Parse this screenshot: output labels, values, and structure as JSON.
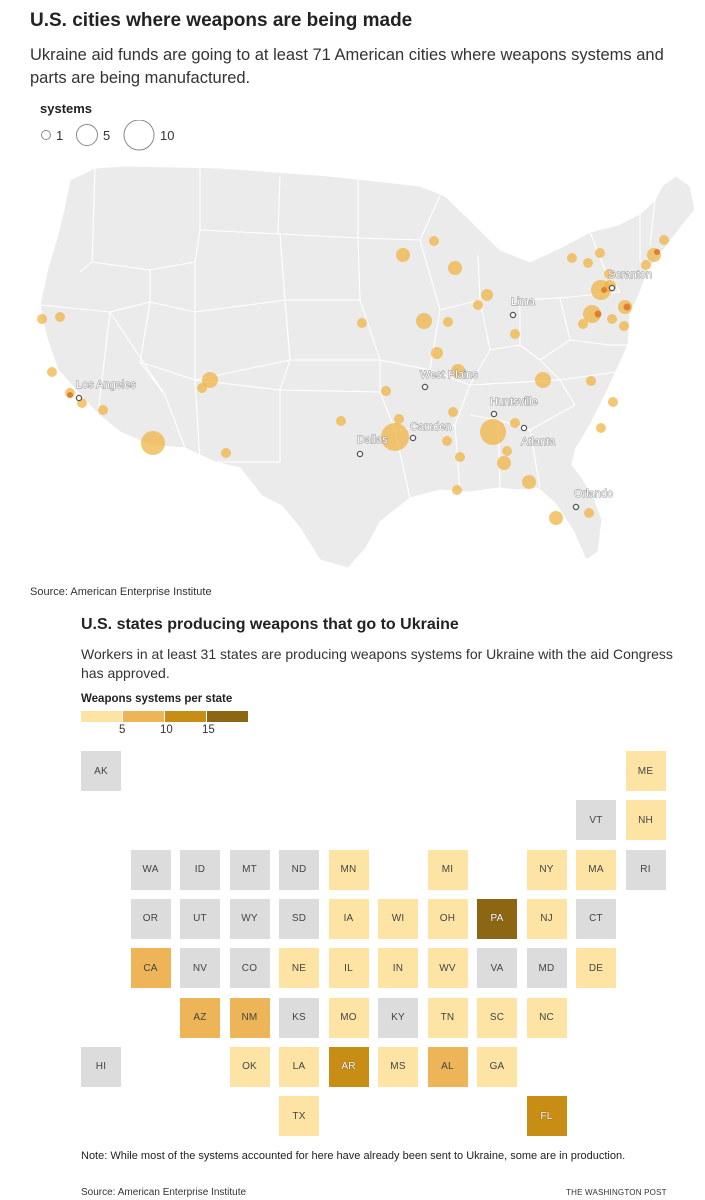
{
  "header": {
    "title": "U.S. cities where weapons are being made",
    "subtitle": "Ukraine aid funds are going to at least 71 American cities where weapons systems and parts are being manufactured."
  },
  "map_legend": {
    "title": "systems",
    "items": [
      "1",
      "5",
      "10"
    ]
  },
  "map": {
    "city_labels": {
      "los_angeles": "Los Angeles",
      "dallas": "Dallas",
      "camden": "Camden",
      "west_plains": "West Plains",
      "lima": "Lima",
      "huntsville": "Huntsville",
      "atlanta": "Atlanta",
      "orlando": "Orlando",
      "scranton": "Scranton"
    },
    "colors": {
      "land": "#ebebeb",
      "border": "#ffffff",
      "bubble": "#f0b23e",
      "bubble_dark": "#d9691c"
    }
  },
  "source1": "Source: American Enterprise Institute",
  "section2": {
    "title": "U.S. states producing weapons that go to Ukraine",
    "subtitle": "Workers in at least 31 states are producing weapons systems for Ukraine with the aid Congress has approved.",
    "legend_title": "Weapons systems per state",
    "legend_ticks": [
      "5",
      "10",
      "15"
    ],
    "legend_colors": [
      "#fde4a4",
      "#edb557",
      "#c88d14",
      "#8c6612"
    ]
  },
  "states": [
    {
      "abbr": "AK",
      "level": 0
    },
    {
      "abbr": "ME",
      "level": 1
    },
    {
      "abbr": "VT",
      "level": 0
    },
    {
      "abbr": "NH",
      "level": 1
    },
    {
      "abbr": "WA",
      "level": 0
    },
    {
      "abbr": "ID",
      "level": 0
    },
    {
      "abbr": "MT",
      "level": 0
    },
    {
      "abbr": "ND",
      "level": 0
    },
    {
      "abbr": "MN",
      "level": 1
    },
    {
      "abbr": "MI",
      "level": 1
    },
    {
      "abbr": "NY",
      "level": 1
    },
    {
      "abbr": "MA",
      "level": 1
    },
    {
      "abbr": "RI",
      "level": 0
    },
    {
      "abbr": "OR",
      "level": 0
    },
    {
      "abbr": "UT",
      "level": 0
    },
    {
      "abbr": "WY",
      "level": 0
    },
    {
      "abbr": "SD",
      "level": 0
    },
    {
      "abbr": "IA",
      "level": 1
    },
    {
      "abbr": "WI",
      "level": 1
    },
    {
      "abbr": "OH",
      "level": 1
    },
    {
      "abbr": "PA",
      "level": 4
    },
    {
      "abbr": "NJ",
      "level": 1
    },
    {
      "abbr": "CT",
      "level": 0
    },
    {
      "abbr": "CA",
      "level": 2
    },
    {
      "abbr": "NV",
      "level": 0
    },
    {
      "abbr": "CO",
      "level": 0
    },
    {
      "abbr": "NE",
      "level": 1
    },
    {
      "abbr": "IL",
      "level": 1
    },
    {
      "abbr": "IN",
      "level": 1
    },
    {
      "abbr": "WV",
      "level": 1
    },
    {
      "abbr": "VA",
      "level": 0
    },
    {
      "abbr": "MD",
      "level": 0
    },
    {
      "abbr": "DE",
      "level": 1
    },
    {
      "abbr": "AZ",
      "level": 2
    },
    {
      "abbr": "NM",
      "level": 2
    },
    {
      "abbr": "KS",
      "level": 0
    },
    {
      "abbr": "MO",
      "level": 1
    },
    {
      "abbr": "KY",
      "level": 0
    },
    {
      "abbr": "TN",
      "level": 1
    },
    {
      "abbr": "SC",
      "level": 1
    },
    {
      "abbr": "NC",
      "level": 1
    },
    {
      "abbr": "HI",
      "level": 0
    },
    {
      "abbr": "OK",
      "level": 1
    },
    {
      "abbr": "LA",
      "level": 1
    },
    {
      "abbr": "AR",
      "level": 3
    },
    {
      "abbr": "MS",
      "level": 1
    },
    {
      "abbr": "AL",
      "level": 2
    },
    {
      "abbr": "GA",
      "level": 1
    },
    {
      "abbr": "TX",
      "level": 1
    },
    {
      "abbr": "FL",
      "level": 3
    }
  ],
  "tile_colors": {
    "none": "#dcdcdc"
  },
  "note": "Note: While most of the systems accounted for here have already been sent to Ukraine, some are in production.",
  "source2": "Source: American Enterprise Institute",
  "credit": "THE WASHINGTON POST"
}
